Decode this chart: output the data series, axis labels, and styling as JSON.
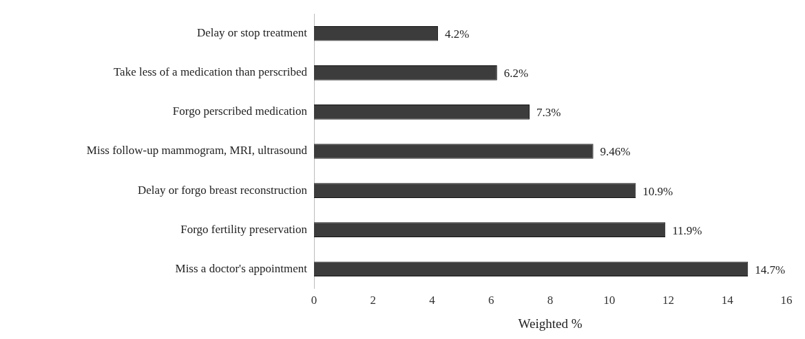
{
  "chart_data": {
    "type": "bar",
    "orientation": "horizontal",
    "xlabel": "Weighted %",
    "categories": [
      "Delay or stop treatment",
      "Take less of a medication than perscribed",
      "Forgo perscribed medication",
      "Miss follow-up mammogram, MRI, ultrasound",
      "Delay or forgo breast reconstruction",
      "Forgo fertility preservation",
      "Miss a doctor's appointment"
    ],
    "values": [
      4.2,
      6.2,
      7.3,
      9.46,
      10.9,
      11.9,
      14.7
    ],
    "value_labels": [
      "4.2%",
      "6.2%",
      "7.3%",
      "9.46%",
      "10.9%",
      "11.9%",
      "14.7%"
    ],
    "color": "#3c3c3c",
    "xlim": [
      0,
      16
    ],
    "xticks": [
      0,
      2,
      4,
      6,
      8,
      10,
      12,
      14,
      16
    ],
    "grid": false,
    "legend": false
  }
}
